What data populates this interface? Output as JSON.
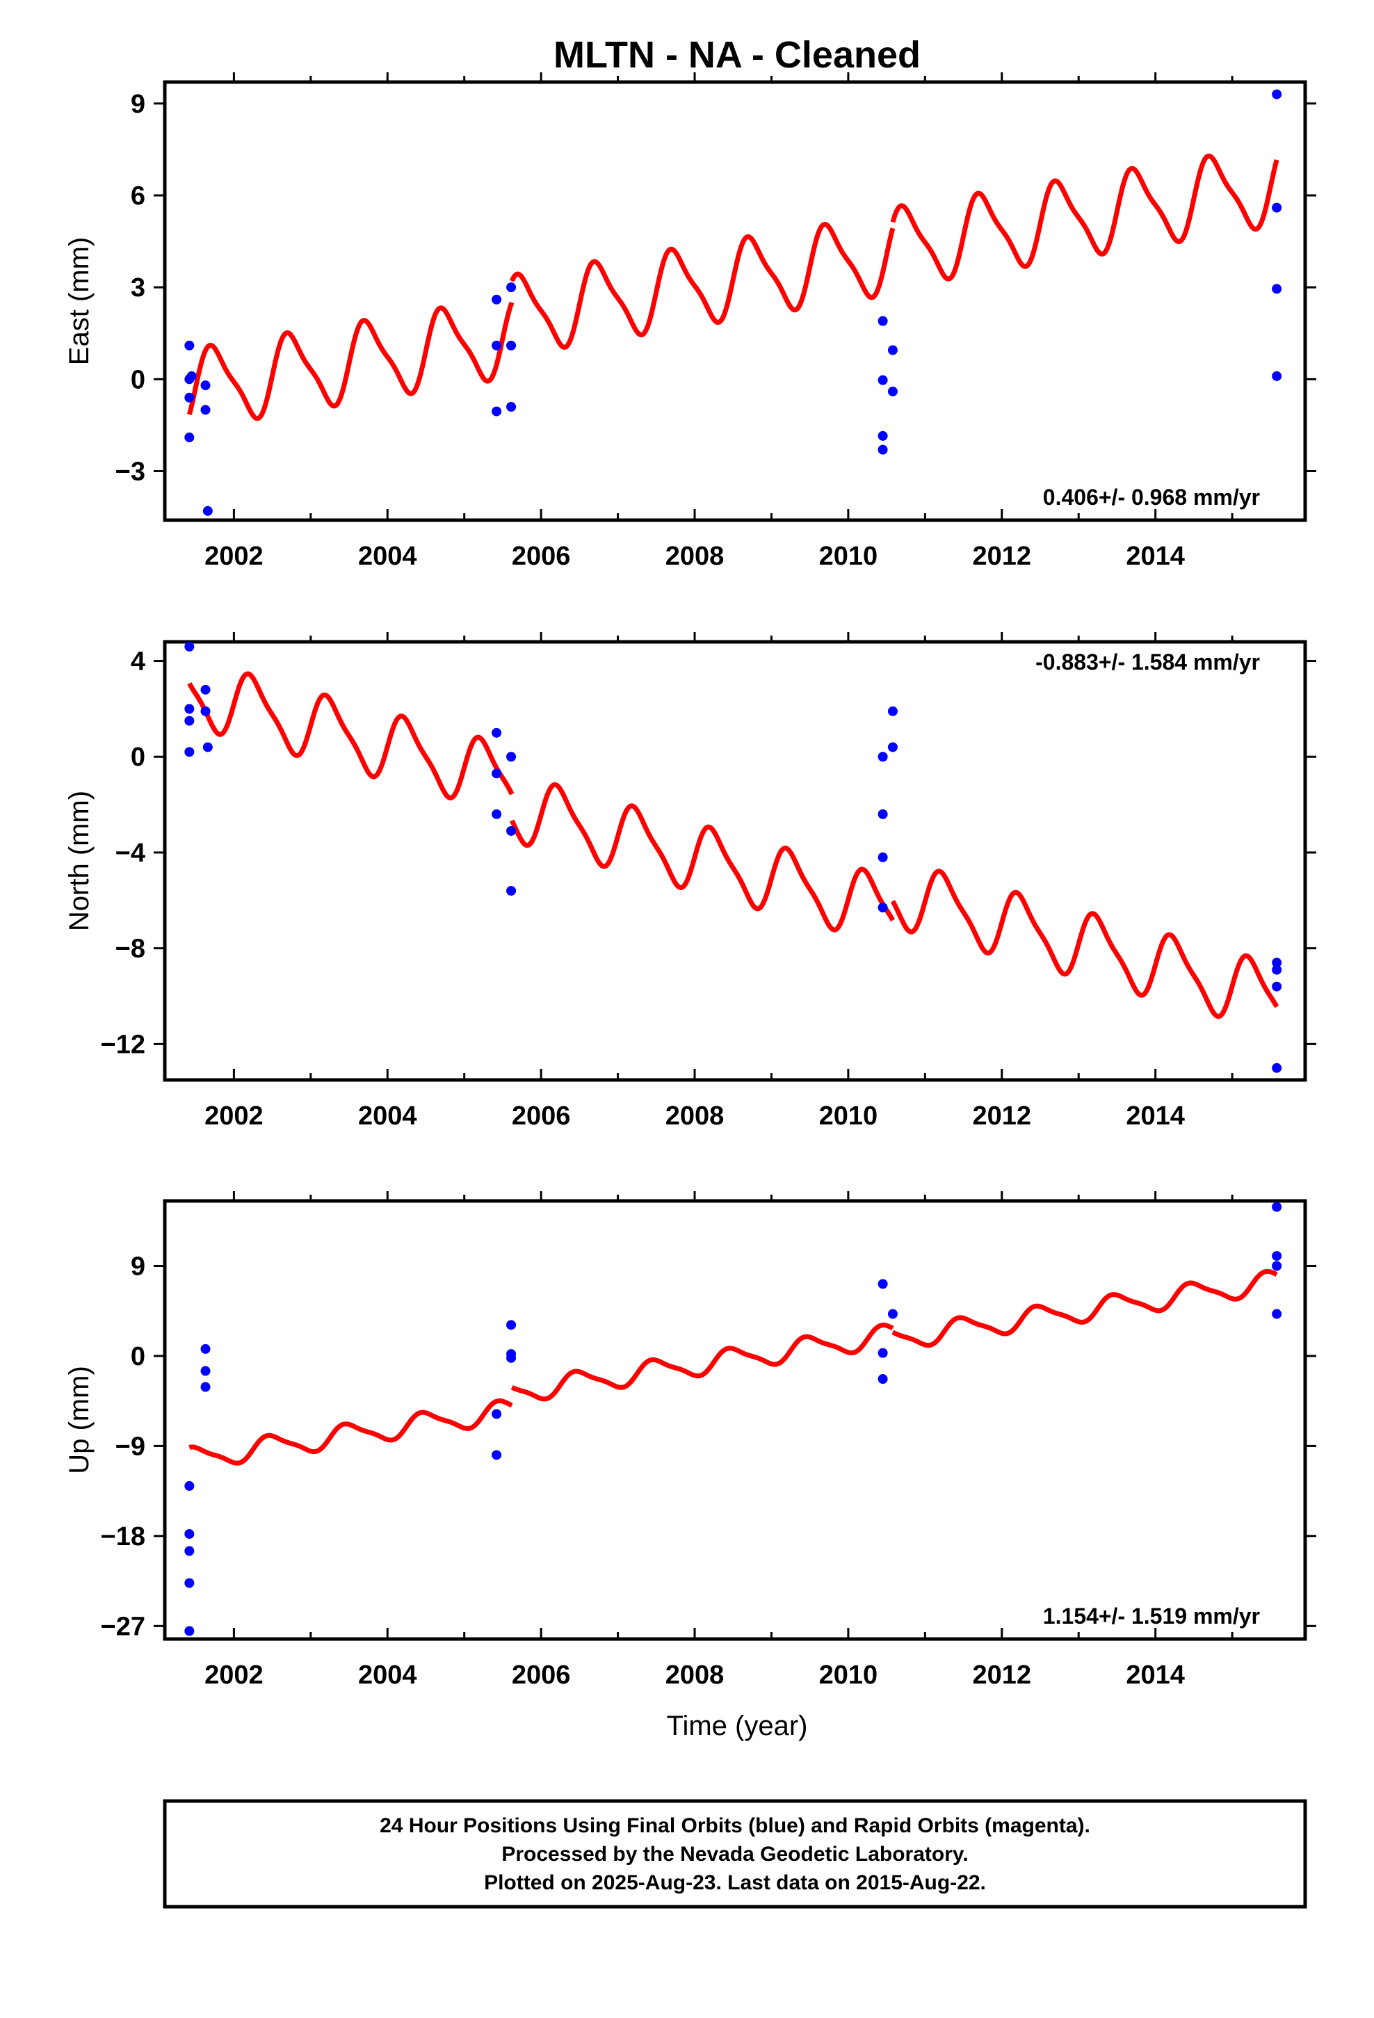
{
  "chart_data": {
    "title": "MLTN  - NA - Cleaned",
    "x_label": "Time (year)",
    "x_range": [
      2001.1,
      2015.95
    ],
    "x_ticks": [
      2002,
      2004,
      2006,
      2008,
      2010,
      2012,
      2014
    ],
    "colors": {
      "points": "#0000ff",
      "model": "#ff0000"
    },
    "panels": [
      {
        "type": "scatter",
        "ylabel": "East (mm)",
        "ylim": [
          -4.6,
          9.7
        ],
        "yticks": [
          -3,
          0,
          3,
          6,
          9
        ],
        "rate_text": "0.406+/- 0.968 mm/yr",
        "rate_position": "bottom-right",
        "points": [
          [
            2001.42,
            1.1
          ],
          [
            2001.42,
            0.0
          ],
          [
            2001.42,
            -0.6
          ],
          [
            2001.42,
            -1.9
          ],
          [
            2001.45,
            0.1
          ],
          [
            2001.63,
            -0.2
          ],
          [
            2001.63,
            -1.0
          ],
          [
            2001.66,
            -4.3
          ],
          [
            2005.42,
            2.6
          ],
          [
            2005.42,
            1.1
          ],
          [
            2005.42,
            -1.05
          ],
          [
            2005.61,
            3.0
          ],
          [
            2005.61,
            1.1
          ],
          [
            2005.61,
            -0.9
          ],
          [
            2010.45,
            1.9
          ],
          [
            2010.45,
            -0.03
          ],
          [
            2010.45,
            -1.85
          ],
          [
            2010.45,
            -2.3
          ],
          [
            2010.58,
            0.95
          ],
          [
            2010.58,
            -0.4
          ],
          [
            2015.58,
            9.3
          ],
          [
            2015.58,
            5.6
          ],
          [
            2015.58,
            2.95
          ],
          [
            2015.58,
            0.1
          ]
        ],
        "model": {
          "segments": [
            [
              2001.42,
              2005.62
            ],
            [
              2005.62,
              2010.58
            ],
            [
              2010.58,
              2015.58
            ]
          ],
          "offsets": [
            -0.25,
            0.45,
            0.65
          ],
          "trend": 0.406,
          "amplitude": 1.2,
          "phase": 0.5,
          "ref_year": 2008.0,
          "base": 2.6
        }
      },
      {
        "type": "scatter",
        "ylabel": "North (mm)",
        "ylim": [
          -13.5,
          4.8
        ],
        "yticks": [
          -12,
          -8,
          -4,
          0,
          4
        ],
        "rate_text": "-0.883+/- 1.584 mm/yr",
        "rate_position": "top-right",
        "points": [
          [
            2001.42,
            4.6
          ],
          [
            2001.42,
            2.0
          ],
          [
            2001.42,
            1.5
          ],
          [
            2001.42,
            0.2
          ],
          [
            2001.63,
            2.8
          ],
          [
            2001.63,
            1.9
          ],
          [
            2001.66,
            0.4
          ],
          [
            2005.42,
            1.0
          ],
          [
            2005.42,
            -0.7
          ],
          [
            2005.42,
            -2.4
          ],
          [
            2005.61,
            0.0
          ],
          [
            2005.61,
            -3.1
          ],
          [
            2005.61,
            -5.6
          ],
          [
            2010.45,
            0.0
          ],
          [
            2010.45,
            -2.4
          ],
          [
            2010.45,
            -4.2
          ],
          [
            2010.45,
            -6.3
          ],
          [
            2010.58,
            1.9
          ],
          [
            2010.58,
            0.4
          ],
          [
            2015.58,
            -8.6
          ],
          [
            2015.58,
            -8.9
          ],
          [
            2015.58,
            -9.6
          ],
          [
            2015.58,
            -13.0
          ]
        ],
        "model": {
          "segments": [
            [
              2001.42,
              2005.62
            ],
            [
              2005.62,
              2010.58
            ],
            [
              2010.58,
              2015.58
            ]
          ],
          "offsets": [
            0.8,
            -0.3,
            0.5
          ],
          "trend": -0.883,
          "amplitude": 1.3,
          "phase": 0.0,
          "ref_year": 2008.0,
          "base": -3.9
        }
      },
      {
        "type": "scatter",
        "ylabel": "Up (mm)",
        "ylim": [
          -28.3,
          15.5
        ],
        "yticks": [
          -27,
          -18,
          -9,
          0,
          9
        ],
        "rate_text": "1.154+/- 1.519 mm/yr",
        "rate_position": "bottom-right",
        "points": [
          [
            2001.42,
            -13.0
          ],
          [
            2001.42,
            -17.8
          ],
          [
            2001.42,
            -19.5
          ],
          [
            2001.42,
            -22.7
          ],
          [
            2001.42,
            -27.5
          ],
          [
            2001.63,
            0.7
          ],
          [
            2001.63,
            -1.5
          ],
          [
            2001.63,
            -3.1
          ],
          [
            2005.42,
            -5.8
          ],
          [
            2005.42,
            -9.9
          ],
          [
            2005.61,
            3.1
          ],
          [
            2005.61,
            0.2
          ],
          [
            2005.61,
            -0.2
          ],
          [
            2010.45,
            7.2
          ],
          [
            2010.45,
            0.3
          ],
          [
            2010.45,
            -2.3
          ],
          [
            2010.58,
            4.2
          ],
          [
            2015.58,
            14.9
          ],
          [
            2015.58,
            10.0
          ],
          [
            2015.58,
            9.0
          ],
          [
            2015.58,
            4.2
          ]
        ],
        "model": {
          "segments": [
            [
              2001.42,
              2005.62
            ],
            [
              2005.62,
              2010.58
            ],
            [
              2010.58,
              2015.58
            ]
          ],
          "offsets": [
            -1.0,
            0.8,
            0.4
          ],
          "trend": 1.154,
          "amplitude": 1.05,
          "phase": 0.25,
          "ref_year": 2008.0,
          "base": -1.7
        }
      }
    ]
  },
  "footer": {
    "line1": "24 Hour Positions Using Final Orbits (blue) and Rapid Orbits (magenta).",
    "line2": "Processed by the Nevada Geodetic Laboratory.",
    "line3": "Plotted on 2025-Aug-23. Last data on 2015-Aug-22."
  }
}
